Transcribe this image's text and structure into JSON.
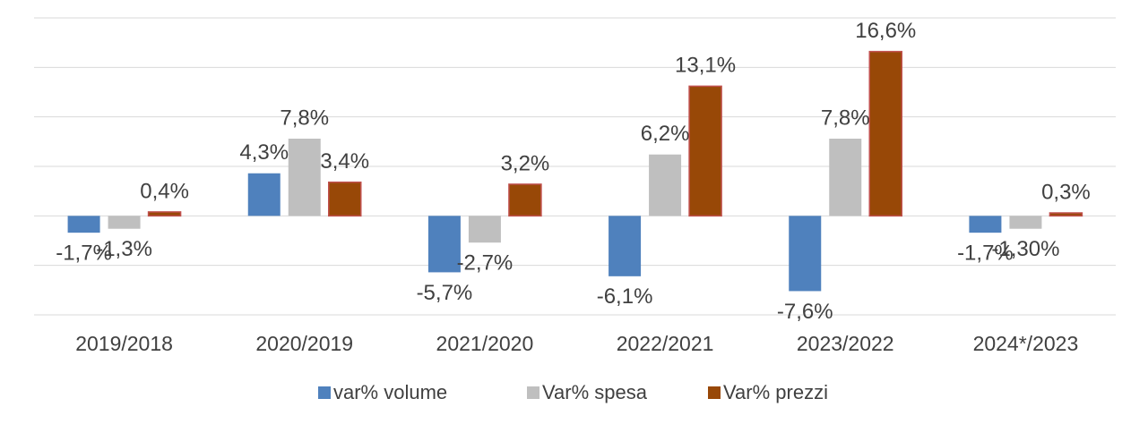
{
  "chart_data": {
    "type": "bar",
    "categories": [
      "2019/2018",
      "2020/2019",
      "2021/2020",
      "2022/2021",
      "2023/2022",
      "2024*/2023"
    ],
    "series": [
      {
        "name": "var% volume",
        "color": "#4f81bd",
        "values": [
          -1.7,
          4.3,
          -5.7,
          -6.1,
          -7.6,
          -1.7
        ],
        "value_labels": [
          "-1,7%",
          "4,3%",
          "-5,7%",
          "-6,1%",
          "-7,6%",
          "-1,7%"
        ]
      },
      {
        "name": "Var% spesa",
        "color": "#bfbfbf",
        "values": [
          -1.3,
          7.8,
          -2.7,
          6.2,
          7.8,
          -1.3
        ],
        "value_labels": [
          "-1,3%",
          "7,8%",
          "-2,7%",
          "6,2%",
          "7,8%",
          "-1,30%"
        ]
      },
      {
        "name": "Var% prezzi",
        "color": "#984807",
        "values": [
          0.4,
          3.4,
          3.2,
          13.1,
          16.6,
          0.3
        ],
        "value_labels": [
          "0,4%",
          "3,4%",
          "3,2%",
          "13,1%",
          "16,6%",
          "0,3%"
        ]
      }
    ],
    "ylim": [
      -10,
      20
    ],
    "yticks": [
      -10,
      -5,
      0,
      5,
      10,
      15,
      20
    ],
    "grid": true,
    "legend": "bottom"
  }
}
